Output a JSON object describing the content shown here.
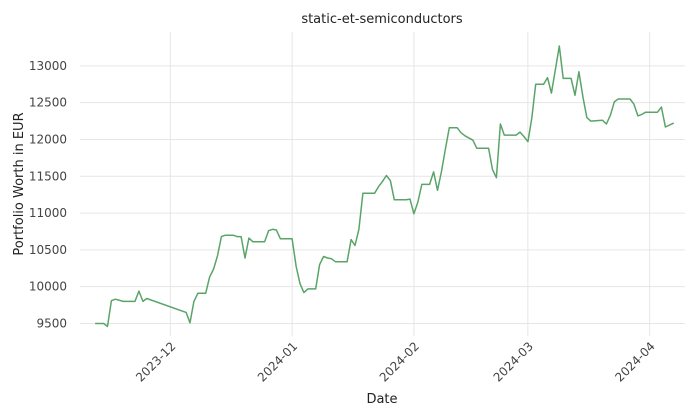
{
  "chart_data": {
    "type": "line",
    "title": "static-et-semiconductors",
    "xlabel": "Date",
    "ylabel": "Portfolio Worth in EUR",
    "x_ticks": [
      "2023-12",
      "2024-01",
      "2024-02",
      "2024-03",
      "2024-04"
    ],
    "y_ticks": [
      9500,
      10000,
      10500,
      11000,
      11500,
      12000,
      12500,
      13000
    ],
    "xlim": [
      "2023-11-08",
      "2024-04-10"
    ],
    "ylim": [
      9330,
      13460
    ],
    "grid": true,
    "line_color": "#5aa469",
    "series": [
      {
        "values": [
          [
            "2023-11-12",
            9500
          ],
          [
            "2023-11-14",
            9500
          ],
          [
            "2023-11-15",
            9460
          ],
          [
            "2023-11-16",
            9810
          ],
          [
            "2023-11-17",
            9830
          ],
          [
            "2023-11-19",
            9800
          ],
          [
            "2023-11-22",
            9800
          ],
          [
            "2023-11-23",
            9940
          ],
          [
            "2023-11-24",
            9800
          ],
          [
            "2023-11-25",
            9840
          ],
          [
            "2023-12-05",
            9650
          ],
          [
            "2023-12-06",
            9510
          ],
          [
            "2023-12-07",
            9800
          ],
          [
            "2023-12-08",
            9910
          ],
          [
            "2023-12-10",
            9910
          ],
          [
            "2023-12-11",
            10130
          ],
          [
            "2023-12-12",
            10240
          ],
          [
            "2023-12-13",
            10420
          ],
          [
            "2023-12-14",
            10680
          ],
          [
            "2023-12-15",
            10700
          ],
          [
            "2023-12-17",
            10700
          ],
          [
            "2023-12-18",
            10680
          ],
          [
            "2023-12-19",
            10680
          ],
          [
            "2023-12-20",
            10390
          ],
          [
            "2023-12-21",
            10660
          ],
          [
            "2023-12-22",
            10610
          ],
          [
            "2023-12-25",
            10610
          ],
          [
            "2023-12-26",
            10760
          ],
          [
            "2023-12-27",
            10780
          ],
          [
            "2023-12-28",
            10770
          ],
          [
            "2023-12-29",
            10650
          ],
          [
            "2024-01-01",
            10650
          ],
          [
            "2024-01-02",
            10280
          ],
          [
            "2024-01-03",
            10040
          ],
          [
            "2024-01-04",
            9920
          ],
          [
            "2024-01-05",
            9970
          ],
          [
            "2024-01-07",
            9970
          ],
          [
            "2024-01-08",
            10300
          ],
          [
            "2024-01-09",
            10410
          ],
          [
            "2024-01-10",
            10390
          ],
          [
            "2024-01-11",
            10380
          ],
          [
            "2024-01-12",
            10340
          ],
          [
            "2024-01-15",
            10340
          ],
          [
            "2024-01-16",
            10640
          ],
          [
            "2024-01-17",
            10560
          ],
          [
            "2024-01-18",
            10780
          ],
          [
            "2024-01-19",
            11270
          ],
          [
            "2024-01-22",
            11270
          ],
          [
            "2024-01-23",
            11360
          ],
          [
            "2024-01-24",
            11430
          ],
          [
            "2024-01-25",
            11510
          ],
          [
            "2024-01-26",
            11440
          ],
          [
            "2024-01-27",
            11180
          ],
          [
            "2024-01-30",
            11180
          ],
          [
            "2024-01-31",
            11190
          ],
          [
            "2024-02-01",
            10990
          ],
          [
            "2024-02-02",
            11150
          ],
          [
            "2024-02-03",
            11390
          ],
          [
            "2024-02-05",
            11390
          ],
          [
            "2024-02-06",
            11560
          ],
          [
            "2024-02-07",
            11310
          ],
          [
            "2024-02-08",
            11560
          ],
          [
            "2024-02-09",
            11870
          ],
          [
            "2024-02-10",
            12160
          ],
          [
            "2024-02-12",
            12160
          ],
          [
            "2024-02-13",
            12090
          ],
          [
            "2024-02-14",
            12050
          ],
          [
            "2024-02-16",
            11990
          ],
          [
            "2024-02-17",
            11880
          ],
          [
            "2024-02-20",
            11880
          ],
          [
            "2024-02-21",
            11590
          ],
          [
            "2024-02-22",
            11480
          ],
          [
            "2024-02-23",
            12210
          ],
          [
            "2024-02-24",
            12060
          ],
          [
            "2024-02-27",
            12060
          ],
          [
            "2024-02-28",
            12100
          ],
          [
            "2024-02-29",
            12040
          ],
          [
            "2024-03-01",
            11970
          ],
          [
            "2024-03-02",
            12290
          ],
          [
            "2024-03-03",
            12750
          ],
          [
            "2024-03-05",
            12750
          ],
          [
            "2024-03-06",
            12840
          ],
          [
            "2024-03-07",
            12630
          ],
          [
            "2024-03-08",
            12950
          ],
          [
            "2024-03-09",
            13270
          ],
          [
            "2024-03-10",
            12830
          ],
          [
            "2024-03-12",
            12830
          ],
          [
            "2024-03-13",
            12600
          ],
          [
            "2024-03-14",
            12920
          ],
          [
            "2024-03-15",
            12580
          ],
          [
            "2024-03-16",
            12300
          ],
          [
            "2024-03-17",
            12250
          ],
          [
            "2024-03-20",
            12260
          ],
          [
            "2024-03-21",
            12210
          ],
          [
            "2024-03-22",
            12330
          ],
          [
            "2024-03-23",
            12510
          ],
          [
            "2024-03-24",
            12550
          ],
          [
            "2024-03-27",
            12550
          ],
          [
            "2024-03-28",
            12480
          ],
          [
            "2024-03-29",
            12320
          ],
          [
            "2024-03-30",
            12340
          ],
          [
            "2024-03-31",
            12370
          ],
          [
            "2024-04-03",
            12370
          ],
          [
            "2024-04-04",
            12440
          ],
          [
            "2024-04-05",
            12170
          ],
          [
            "2024-04-07",
            12220
          ]
        ]
      }
    ]
  }
}
